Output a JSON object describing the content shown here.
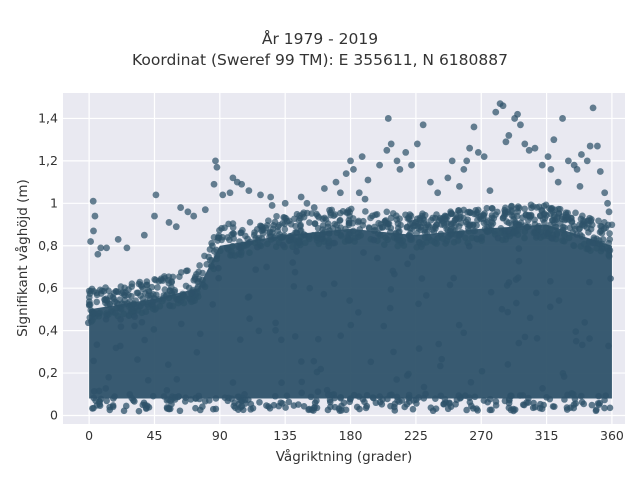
{
  "chart_data": {
    "type": "scatter",
    "title": "År 1979 - 2019",
    "subtitle": "Koordinat (Sweref 99 TM): E 355611, N 6180887",
    "xlabel": "Vågriktning (grader)",
    "ylabel": "Signifikant våghöjd (m)",
    "xlim": [
      -18,
      369
    ],
    "ylim": [
      -0.04,
      1.52
    ],
    "xticks": [
      0,
      45,
      90,
      135,
      180,
      225,
      270,
      315,
      360
    ],
    "xtick_labels": [
      "0",
      "45",
      "90",
      "135",
      "180",
      "225",
      "270",
      "315",
      "360"
    ],
    "yticks": [
      0,
      0.2,
      0.4,
      0.6,
      0.8,
      1.0,
      1.2,
      1.4
    ],
    "ytick_labels": [
      "0",
      "0,2",
      "0,4",
      "0,6",
      "0,8",
      "1",
      "1,2",
      "1,4"
    ],
    "grid": true,
    "background": "#e9e9f1",
    "marker_color": "#2e5269",
    "dense_band": {
      "x": [
        0,
        360
      ],
      "lower": 0.08,
      "upper_by_direction": [
        [
          0,
          0.5
        ],
        [
          45,
          0.55
        ],
        [
          75,
          0.6
        ],
        [
          90,
          0.8
        ],
        [
          135,
          0.85
        ],
        [
          180,
          0.88
        ],
        [
          225,
          0.85
        ],
        [
          270,
          0.88
        ],
        [
          315,
          0.9
        ],
        [
          360,
          0.8
        ]
      ]
    },
    "points": [
      [
        2.8,
        1.01
      ],
      [
        4,
        0.94
      ],
      [
        3,
        0.87
      ],
      [
        8,
        0.79
      ],
      [
        12,
        0.79
      ],
      [
        20,
        0.83
      ],
      [
        26,
        0.79
      ],
      [
        1,
        0.82
      ],
      [
        6,
        0.76
      ],
      [
        46,
        1.04
      ],
      [
        45,
        0.94
      ],
      [
        55,
        0.91
      ],
      [
        60,
        0.89
      ],
      [
        38,
        0.85
      ],
      [
        63,
        0.98
      ],
      [
        68,
        0.96
      ],
      [
        72,
        0.94
      ],
      [
        80,
        0.97
      ],
      [
        86,
        1.09
      ],
      [
        87,
        1.2
      ],
      [
        88,
        1.17
      ],
      [
        92,
        1.04
      ],
      [
        97,
        1.05
      ],
      [
        99,
        1.12
      ],
      [
        102,
        1.1
      ],
      [
        105,
        1.09
      ],
      [
        110,
        1.06
      ],
      [
        118,
        1.04
      ],
      [
        126,
        0.99
      ],
      [
        135,
        1.0
      ],
      [
        146,
        1.03
      ],
      [
        150,
        1.0
      ],
      [
        155,
        0.98
      ],
      [
        162,
        1.07
      ],
      [
        170,
        1.1
      ],
      [
        173,
        1.05
      ],
      [
        177,
        1.14
      ],
      [
        180,
        1.2
      ],
      [
        182,
        1.16
      ],
      [
        186,
        1.05
      ],
      [
        188,
        1.22
      ],
      [
        192,
        1.11
      ],
      [
        200,
        1.18
      ],
      [
        205,
        1.25
      ],
      [
        206,
        1.4
      ],
      [
        208,
        1.28
      ],
      [
        212,
        1.2
      ],
      [
        214,
        1.16
      ],
      [
        218,
        1.24
      ],
      [
        222,
        1.18
      ],
      [
        226,
        1.28
      ],
      [
        230,
        1.37
      ],
      [
        235,
        1.1
      ],
      [
        240,
        1.05
      ],
      [
        247,
        1.12
      ],
      [
        250,
        1.2
      ],
      [
        255,
        1.08
      ],
      [
        258,
        1.16
      ],
      [
        260,
        1.2
      ],
      [
        262,
        1.26
      ],
      [
        265,
        1.36
      ],
      [
        268,
        1.24
      ],
      [
        272,
        1.22
      ],
      [
        276,
        1.06
      ],
      [
        280,
        1.43
      ],
      [
        283,
        1.47
      ],
      [
        285,
        1.46
      ],
      [
        287,
        1.29
      ],
      [
        289,
        1.32
      ],
      [
        293,
        1.4
      ],
      [
        295,
        1.42
      ],
      [
        297,
        1.37
      ],
      [
        300,
        1.28
      ],
      [
        303,
        1.25
      ],
      [
        307,
        1.26
      ],
      [
        312,
        1.18
      ],
      [
        316,
        1.22
      ],
      [
        318,
        1.16
      ],
      [
        320,
        1.3
      ],
      [
        323,
        1.1
      ],
      [
        326,
        1.4
      ],
      [
        330,
        1.2
      ],
      [
        334,
        1.18
      ],
      [
        336,
        1.16
      ],
      [
        339,
        1.23
      ],
      [
        343,
        1.2
      ],
      [
        345,
        1.27
      ],
      [
        347,
        1.45
      ],
      [
        350,
        1.27
      ],
      [
        352,
        1.15
      ],
      [
        355,
        1.05
      ],
      [
        357,
        1.0
      ],
      [
        358,
        0.96
      ],
      [
        338,
        1.08
      ],
      [
        125,
        1.03
      ],
      [
        190,
        1.02
      ]
    ]
  }
}
